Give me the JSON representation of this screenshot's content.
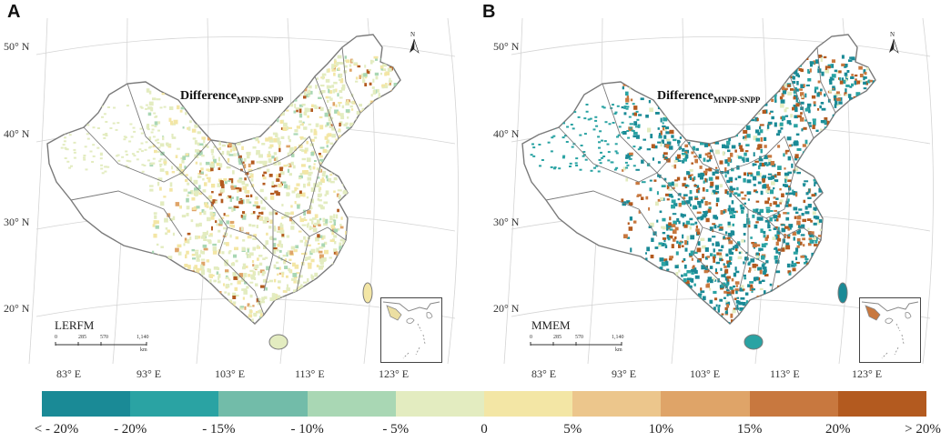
{
  "panels": [
    {
      "letter": "A",
      "title_main": "Difference",
      "title_sub": "MNPP-SNPP",
      "model": "LERFM",
      "lat_labels": [
        "50° N",
        "40° N",
        "30° N",
        "20° N"
      ],
      "lon_labels": [
        "83° E",
        "93° E",
        "103° E",
        "113° E",
        "123° E"
      ],
      "scale_ticks": [
        "0",
        "285",
        "570",
        "1,140"
      ],
      "scale_unit": "km",
      "north": "N"
    },
    {
      "letter": "B",
      "title_main": "Difference",
      "title_sub": "MNPP-SNPP",
      "model": "MMEM",
      "lat_labels": [
        "50° N",
        "40° N",
        "30° N",
        "20° N"
      ],
      "lon_labels": [
        "83° E",
        "93° E",
        "103° E",
        "113° E",
        "123° E"
      ],
      "scale_ticks": [
        "0",
        "285",
        "570",
        "1,140"
      ],
      "scale_unit": "km",
      "north": "N"
    }
  ],
  "legend": {
    "colors": [
      "#1a8a96",
      "#2aa3a3",
      "#72bca9",
      "#a9d7b4",
      "#e3ecc0",
      "#f3e6a5",
      "#ecc68c",
      "#dfa468",
      "#c8783f",
      "#b35a1f"
    ],
    "labels": [
      "< - 20%",
      "- 20%",
      "- 15%",
      "- 10%",
      "- 5%",
      "0",
      "5%",
      "10%",
      "15%",
      "20%",
      "> 20%"
    ]
  },
  "colors": {
    "boundary": "#7a7a7a",
    "graticule": "#d4d4d4"
  }
}
